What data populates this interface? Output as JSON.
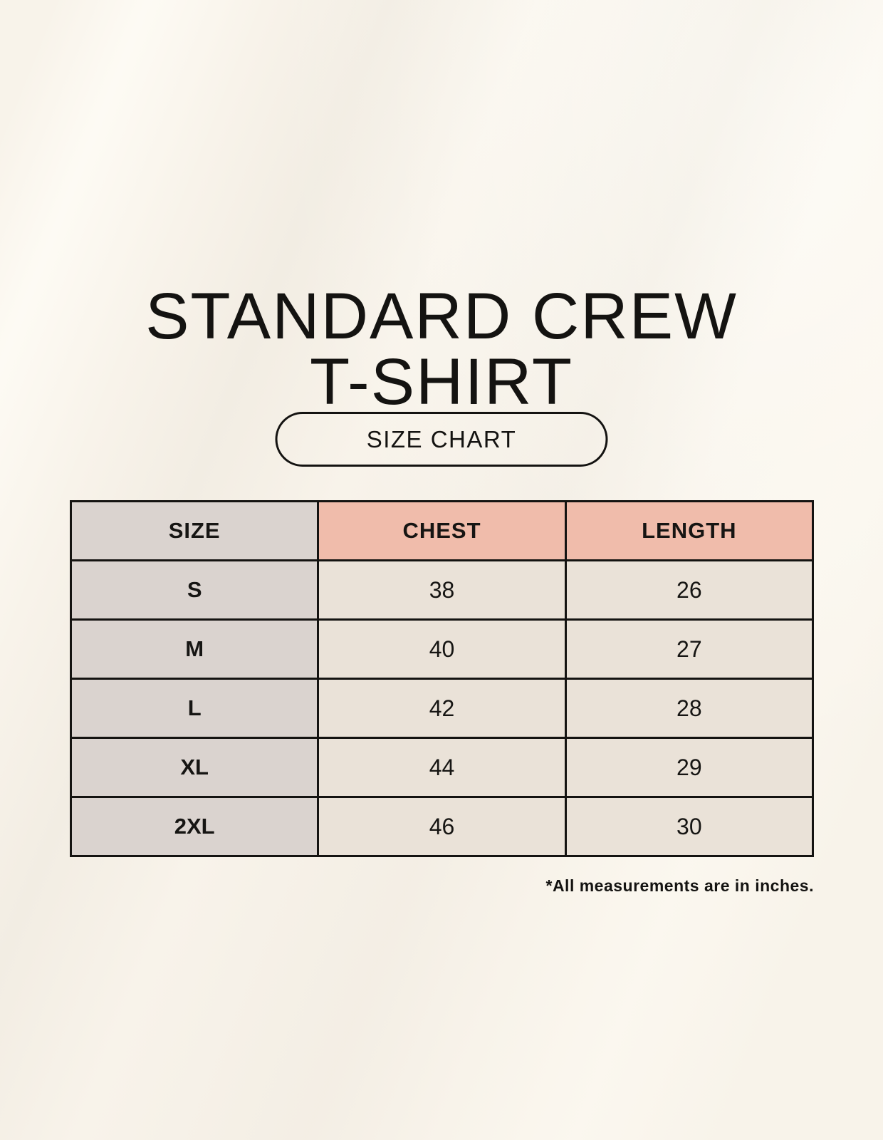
{
  "chart_data": {
    "type": "table",
    "title": "STANDARD CREW T-SHIRT",
    "columns": [
      "SIZE",
      "CHEST",
      "LENGTH"
    ],
    "rows": [
      [
        "S",
        38,
        26
      ],
      [
        "M",
        40,
        27
      ],
      [
        "L",
        42,
        28
      ],
      [
        "XL",
        44,
        29
      ],
      [
        "2XL",
        46,
        30
      ]
    ],
    "units": "inches",
    "note": "*All measurements are in inches."
  },
  "title": {
    "line1": "STANDARD CREW",
    "line2": "T-SHIRT"
  },
  "button": {
    "label": "SIZE CHART"
  },
  "table": {
    "headers": [
      "SIZE",
      "CHEST",
      "LENGTH"
    ],
    "rows": [
      {
        "size": "S",
        "chest": "38",
        "length": "26"
      },
      {
        "size": "M",
        "chest": "40",
        "length": "27"
      },
      {
        "size": "L",
        "chest": "42",
        "length": "28"
      },
      {
        "size": "XL",
        "chest": "44",
        "length": "29"
      },
      {
        "size": "2XL",
        "chest": "46",
        "length": "30"
      }
    ]
  },
  "footnote": "*All measurements are in inches.",
  "colors": {
    "background": "#f8f3ea",
    "ink": "#141311",
    "header_accent": "#f0bcab",
    "label_column": "#dad3cf",
    "data_cell": "#eae2d8"
  }
}
